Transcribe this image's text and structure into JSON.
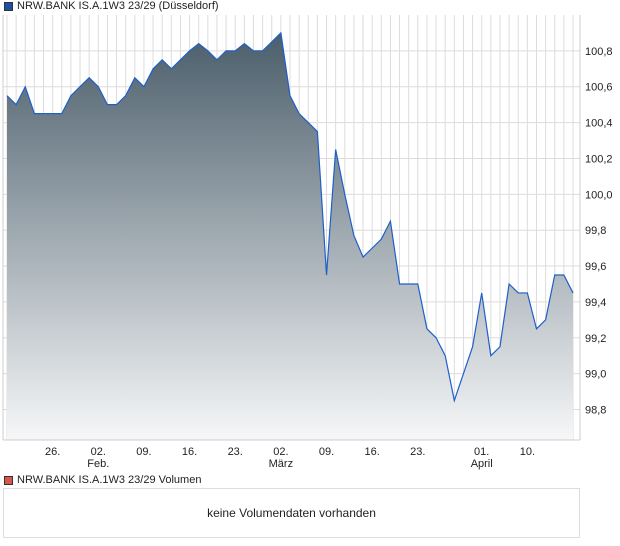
{
  "chart_data": {
    "type": "area",
    "title": "NRW.BANK IS.A.1W3 23/29 (Düsseldorf)",
    "legend_color": "#1f4f9f",
    "line_color": "#1e5fc8",
    "fill_gradient": [
      "#4b5e6b",
      "#f6f7f8"
    ],
    "ylim": [
      98.63,
      101.0
    ],
    "yticks": [
      98.8,
      99.0,
      99.2,
      99.4,
      99.6,
      99.8,
      100.0,
      100.2,
      100.4,
      100.6,
      100.8
    ],
    "ytick_labels": [
      "98,8",
      "99,0",
      "99,2",
      "99,4",
      "99,6",
      "99,8",
      "100,0",
      "100,2",
      "100,4",
      "100,6",
      "100,8"
    ],
    "grid": true,
    "xticks": [
      {
        "date": "2026-01-26",
        "label": "26.",
        "sub": ""
      },
      {
        "date": "2026-02-02",
        "label": "02.",
        "sub": "Feb."
      },
      {
        "date": "2026-02-09",
        "label": "09.",
        "sub": ""
      },
      {
        "date": "2026-02-16",
        "label": "16.",
        "sub": ""
      },
      {
        "date": "2026-02-23",
        "label": "23.",
        "sub": ""
      },
      {
        "date": "2026-03-02",
        "label": "02.",
        "sub": "März"
      },
      {
        "date": "2026-03-09",
        "label": "09.",
        "sub": ""
      },
      {
        "date": "2026-03-16",
        "label": "16.",
        "sub": ""
      },
      {
        "date": "2026-03-23",
        "label": "23.",
        "sub": ""
      },
      {
        "date": "2026-04-01",
        "label": "01.",
        "sub": "April"
      },
      {
        "date": "2026-04-10",
        "label": "10.",
        "sub": ""
      }
    ],
    "x": [
      "2026-01-19",
      "2026-01-20",
      "2026-01-21",
      "2026-01-22",
      "2026-01-23",
      "2026-01-26",
      "2026-01-27",
      "2026-01-28",
      "2026-01-29",
      "2026-01-30",
      "2026-02-02",
      "2026-02-03",
      "2026-02-04",
      "2026-02-05",
      "2026-02-06",
      "2026-02-09",
      "2026-02-10",
      "2026-02-11",
      "2026-02-12",
      "2026-02-13",
      "2026-02-16",
      "2026-02-17",
      "2026-02-18",
      "2026-02-19",
      "2026-02-20",
      "2026-02-23",
      "2026-02-24",
      "2026-02-25",
      "2026-02-26",
      "2026-02-27",
      "2026-03-02",
      "2026-03-03",
      "2026-03-04",
      "2026-03-05",
      "2026-03-06",
      "2026-03-09",
      "2026-03-10",
      "2026-03-11",
      "2026-03-12",
      "2026-03-13",
      "2026-03-16",
      "2026-03-17",
      "2026-03-18",
      "2026-03-19",
      "2026-03-20",
      "2026-03-23",
      "2026-03-24",
      "2026-03-25",
      "2026-03-26",
      "2026-03-27",
      "2026-03-30",
      "2026-03-31",
      "2026-04-01",
      "2026-04-02",
      "2026-04-07",
      "2026-04-08",
      "2026-04-09",
      "2026-04-10",
      "2026-04-13",
      "2026-04-14",
      "2026-04-15",
      "2026-04-16",
      "2026-04-17"
    ],
    "values": [
      100.55,
      100.5,
      100.6,
      100.45,
      100.45,
      100.45,
      100.45,
      100.55,
      100.6,
      100.65,
      100.6,
      100.5,
      100.5,
      100.55,
      100.65,
      100.6,
      100.7,
      100.75,
      100.7,
      100.75,
      100.8,
      100.84,
      100.8,
      100.75,
      100.8,
      100.8,
      100.84,
      100.8,
      100.8,
      100.85,
      100.9,
      100.55,
      100.45,
      100.4,
      100.35,
      99.55,
      100.25,
      100.0,
      99.77,
      99.65,
      99.7,
      99.75,
      99.85,
      99.5,
      99.5,
      99.5,
      99.25,
      99.2,
      99.1,
      98.85,
      99.0,
      99.15,
      99.45,
      99.1,
      99.15,
      99.5,
      99.45,
      99.45,
      99.25,
      99.3,
      99.55,
      99.55,
      99.45
    ]
  },
  "volume": {
    "title": "NRW.BANK IS.A.1W3 23/29 Volumen",
    "legend_color": "#d9534f",
    "message": "keine Volumendaten vorhanden"
  }
}
